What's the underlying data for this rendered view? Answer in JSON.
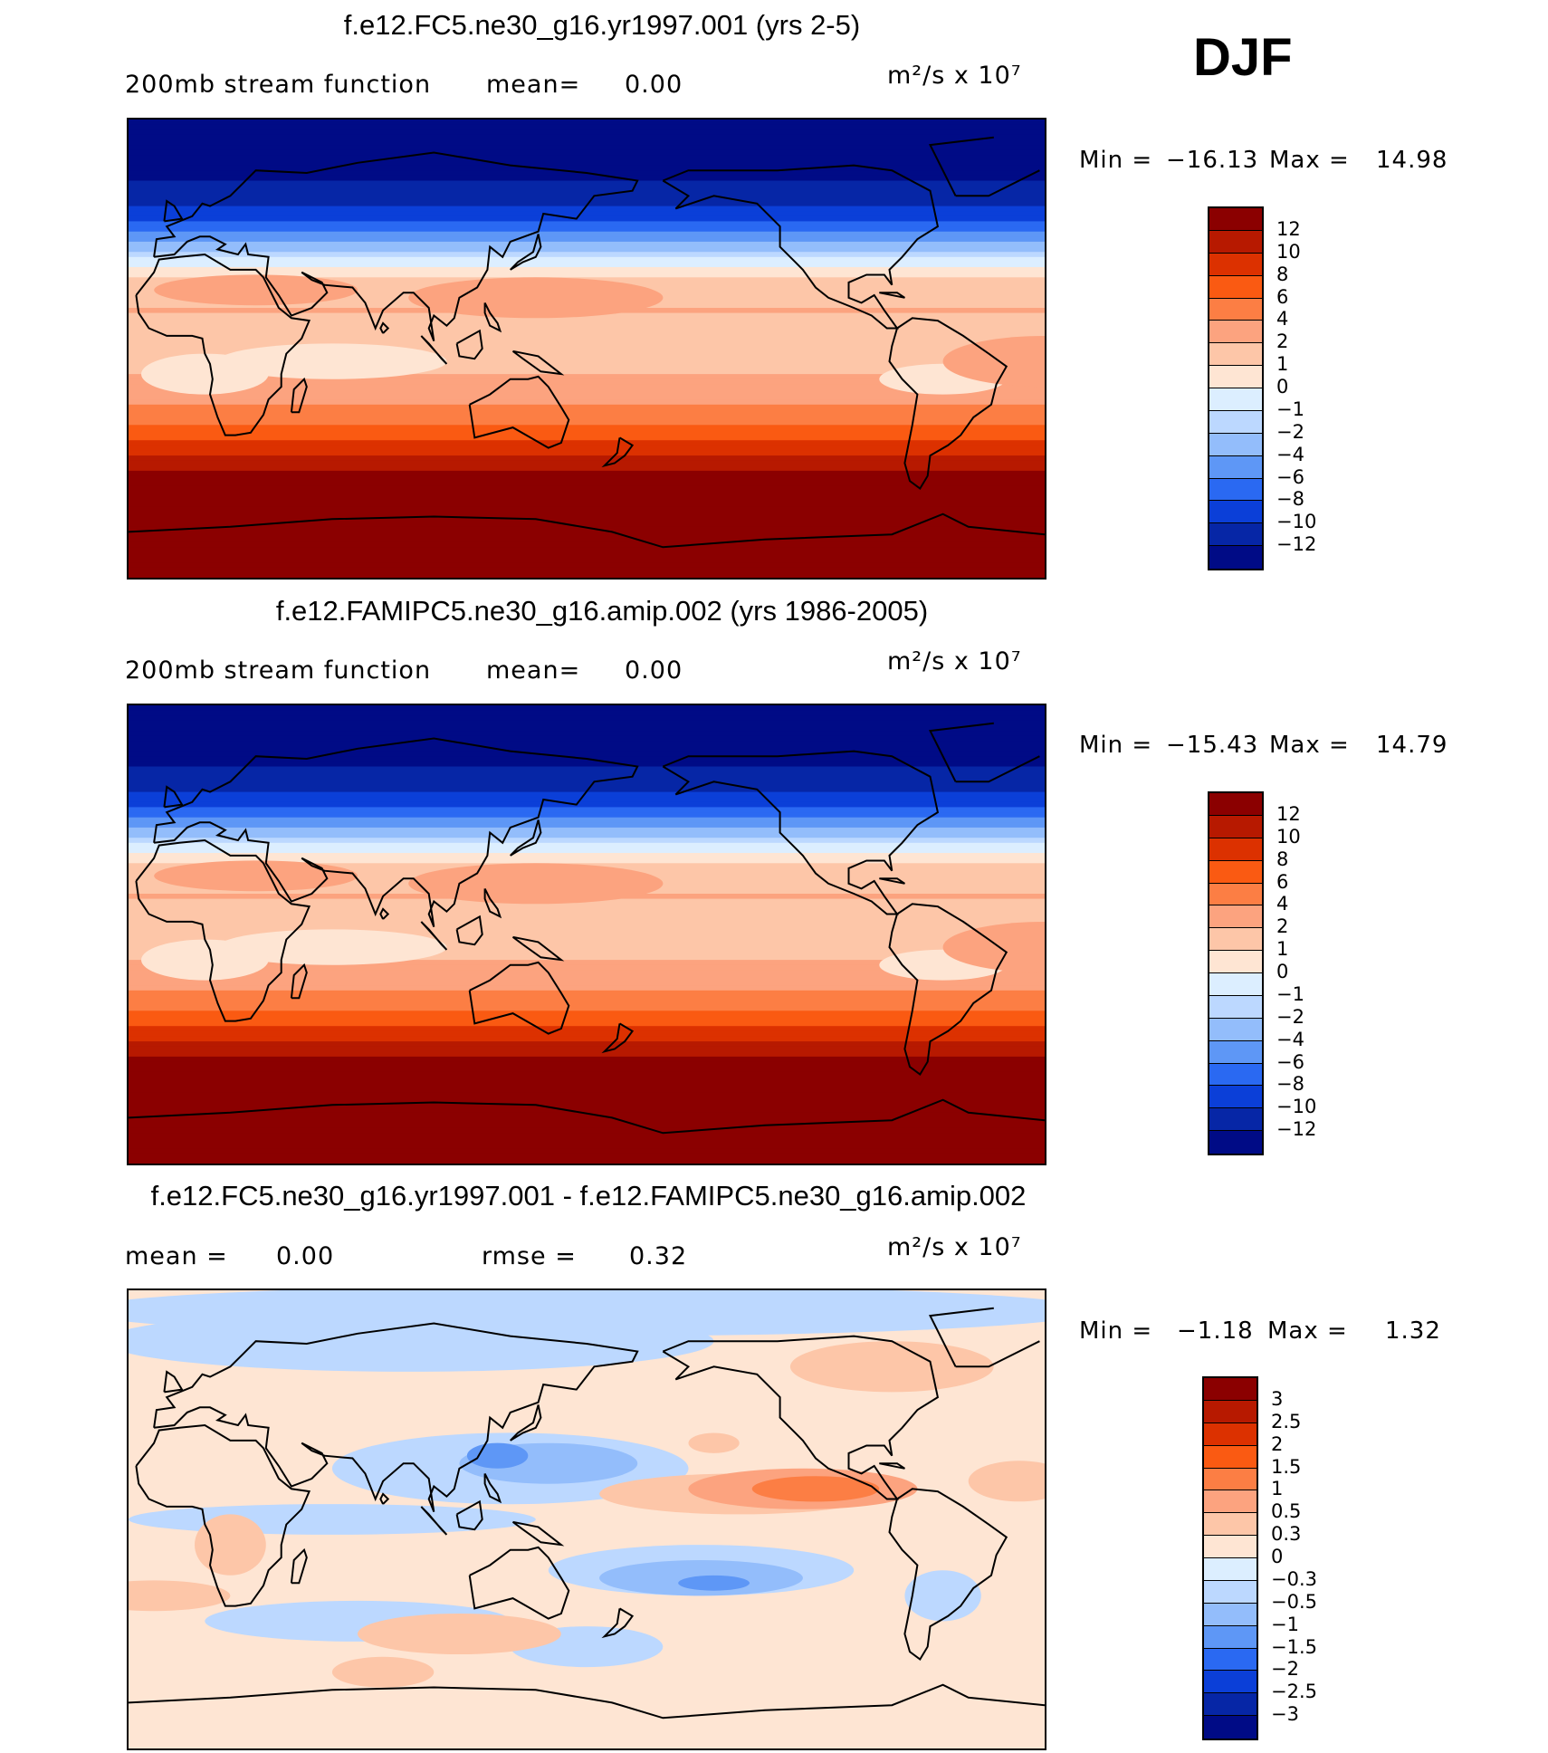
{
  "season": "DJF",
  "panels": [
    {
      "title": "f.e12.FC5.ne30_g16.yr1997.001 (yrs 2-5)",
      "left_text": "200mb  stream  function",
      "mid_label": "mean=",
      "mid_value": "0.00",
      "units": "m²/s x 10⁷",
      "min_label": "Min  =",
      "min_value": "−16.13",
      "max_label": "Max  =",
      "max_value": "14.98"
    },
    {
      "title": "f.e12.FAMIPC5.ne30_g16.amip.002 (yrs 1986-2005)",
      "left_text": "200mb  stream  function",
      "mid_label": "mean=",
      "mid_value": "0.00",
      "units": "m²/s x 10⁷",
      "min_label": "Min  =",
      "min_value": "−15.43",
      "max_label": "Max  =",
      "max_value": "14.79"
    },
    {
      "title": "f.e12.FC5.ne30_g16.yr1997.001 - f.e12.FAMIPC5.ne30_g16.amip.002",
      "mean_label": "mean  =",
      "mean_value": "0.00",
      "rmse_label": "rmse  =",
      "rmse_value": "0.32",
      "units": "m²/s x 10⁷",
      "min_label": "Min  =",
      "min_value": "−1.18",
      "max_label": "Max  =",
      "max_value": "1.32"
    }
  ],
  "chart_data": [
    {
      "type": "heatmap",
      "title": "f.e12.FC5.ne30_g16.yr1997.001 (yrs 2-5)",
      "variable": "200mb stream function",
      "units": "m2/s x 10^7",
      "mean": 0.0,
      "min": -16.13,
      "max": 14.98,
      "levels": [
        12,
        10,
        8,
        6,
        4,
        2,
        1,
        0,
        -1,
        -2,
        -4,
        -6,
        -8,
        -10,
        -12
      ],
      "level_labels": [
        "12",
        "10",
        "8",
        "6",
        "4",
        "2",
        "1",
        "0",
        "−1",
        "−2",
        "−4",
        "−6",
        "−8",
        "−10",
        "−12"
      ],
      "lat_profile": [
        [
          90,
          -16
        ],
        [
          75,
          -14
        ],
        [
          60,
          -11
        ],
        [
          50,
          -8
        ],
        [
          42,
          -4
        ],
        [
          35,
          -1
        ],
        [
          28,
          1
        ],
        [
          15,
          2
        ],
        [
          0,
          1.5
        ],
        [
          -10,
          2
        ],
        [
          -20,
          3.5
        ],
        [
          -30,
          6
        ],
        [
          -40,
          9.5
        ],
        [
          -50,
          13
        ],
        [
          -65,
          15
        ],
        [
          -90,
          15
        ]
      ],
      "colors": [
        "#8b0000",
        "#b71900",
        "#dc3100",
        "#fa5a12",
        "#fc7e44",
        "#fca37f",
        "#fdc6a8",
        "#fee5d3",
        "#dceeff",
        "#bcd8ff",
        "#93bdfb",
        "#5e97f6",
        "#2a69f2",
        "#0b3fd8",
        "#0626a6",
        "#000b86"
      ]
    },
    {
      "type": "heatmap",
      "title": "f.e12.FAMIPC5.ne30_g16.amip.002 (yrs 1986-2005)",
      "variable": "200mb stream function",
      "units": "m2/s x 10^7",
      "mean": 0.0,
      "min": -15.43,
      "max": 14.79,
      "levels": [
        12,
        10,
        8,
        6,
        4,
        2,
        1,
        0,
        -1,
        -2,
        -4,
        -6,
        -8,
        -10,
        -12
      ],
      "level_labels": [
        "12",
        "10",
        "8",
        "6",
        "4",
        "2",
        "1",
        "0",
        "−1",
        "−2",
        "−4",
        "−6",
        "−8",
        "−10",
        "−12"
      ],
      "lat_profile": [
        [
          90,
          -16
        ],
        [
          75,
          -14
        ],
        [
          60,
          -11
        ],
        [
          50,
          -8
        ],
        [
          42,
          -4
        ],
        [
          35,
          -1
        ],
        [
          28,
          1
        ],
        [
          15,
          2
        ],
        [
          0,
          1.5
        ],
        [
          -10,
          2
        ],
        [
          -20,
          3.5
        ],
        [
          -30,
          6
        ],
        [
          -40,
          9.5
        ],
        [
          -50,
          13
        ],
        [
          -65,
          15
        ],
        [
          -90,
          15
        ]
      ],
      "colors": [
        "#8b0000",
        "#b71900",
        "#dc3100",
        "#fa5a12",
        "#fc7e44",
        "#fca37f",
        "#fdc6a8",
        "#fee5d3",
        "#dceeff",
        "#bcd8ff",
        "#93bdfb",
        "#5e97f6",
        "#2a69f2",
        "#0b3fd8",
        "#0626a6",
        "#000b86"
      ]
    },
    {
      "type": "heatmap",
      "title": "f.e12.FC5.ne30_g16.yr1997.001 - f.e12.FAMIPC5.ne30_g16.amip.002",
      "variable": "difference",
      "units": "m2/s x 10^7",
      "mean": 0.0,
      "rmse": 0.32,
      "min": -1.18,
      "max": 1.32,
      "levels": [
        3,
        2.5,
        2,
        1.5,
        1,
        0.5,
        0.3,
        0,
        -0.3,
        -0.5,
        -1,
        -1.5,
        -2,
        -2.5,
        -3
      ],
      "level_labels": [
        "3",
        "2.5",
        "2",
        "1.5",
        "1",
        "0.5",
        "0.3",
        "0",
        "−0.3",
        "−0.5",
        "−1",
        "−1.5",
        "−2",
        "−2.5",
        "−3"
      ],
      "colors": [
        "#8b0000",
        "#b71900",
        "#dc3100",
        "#fa5a12",
        "#fc7e44",
        "#fca37f",
        "#fdc6a8",
        "#fee5d3",
        "#dceeff",
        "#bcd8ff",
        "#93bdfb",
        "#5e97f6",
        "#2a69f2",
        "#0b3fd8",
        "#0626a6",
        "#000b86"
      ]
    }
  ]
}
